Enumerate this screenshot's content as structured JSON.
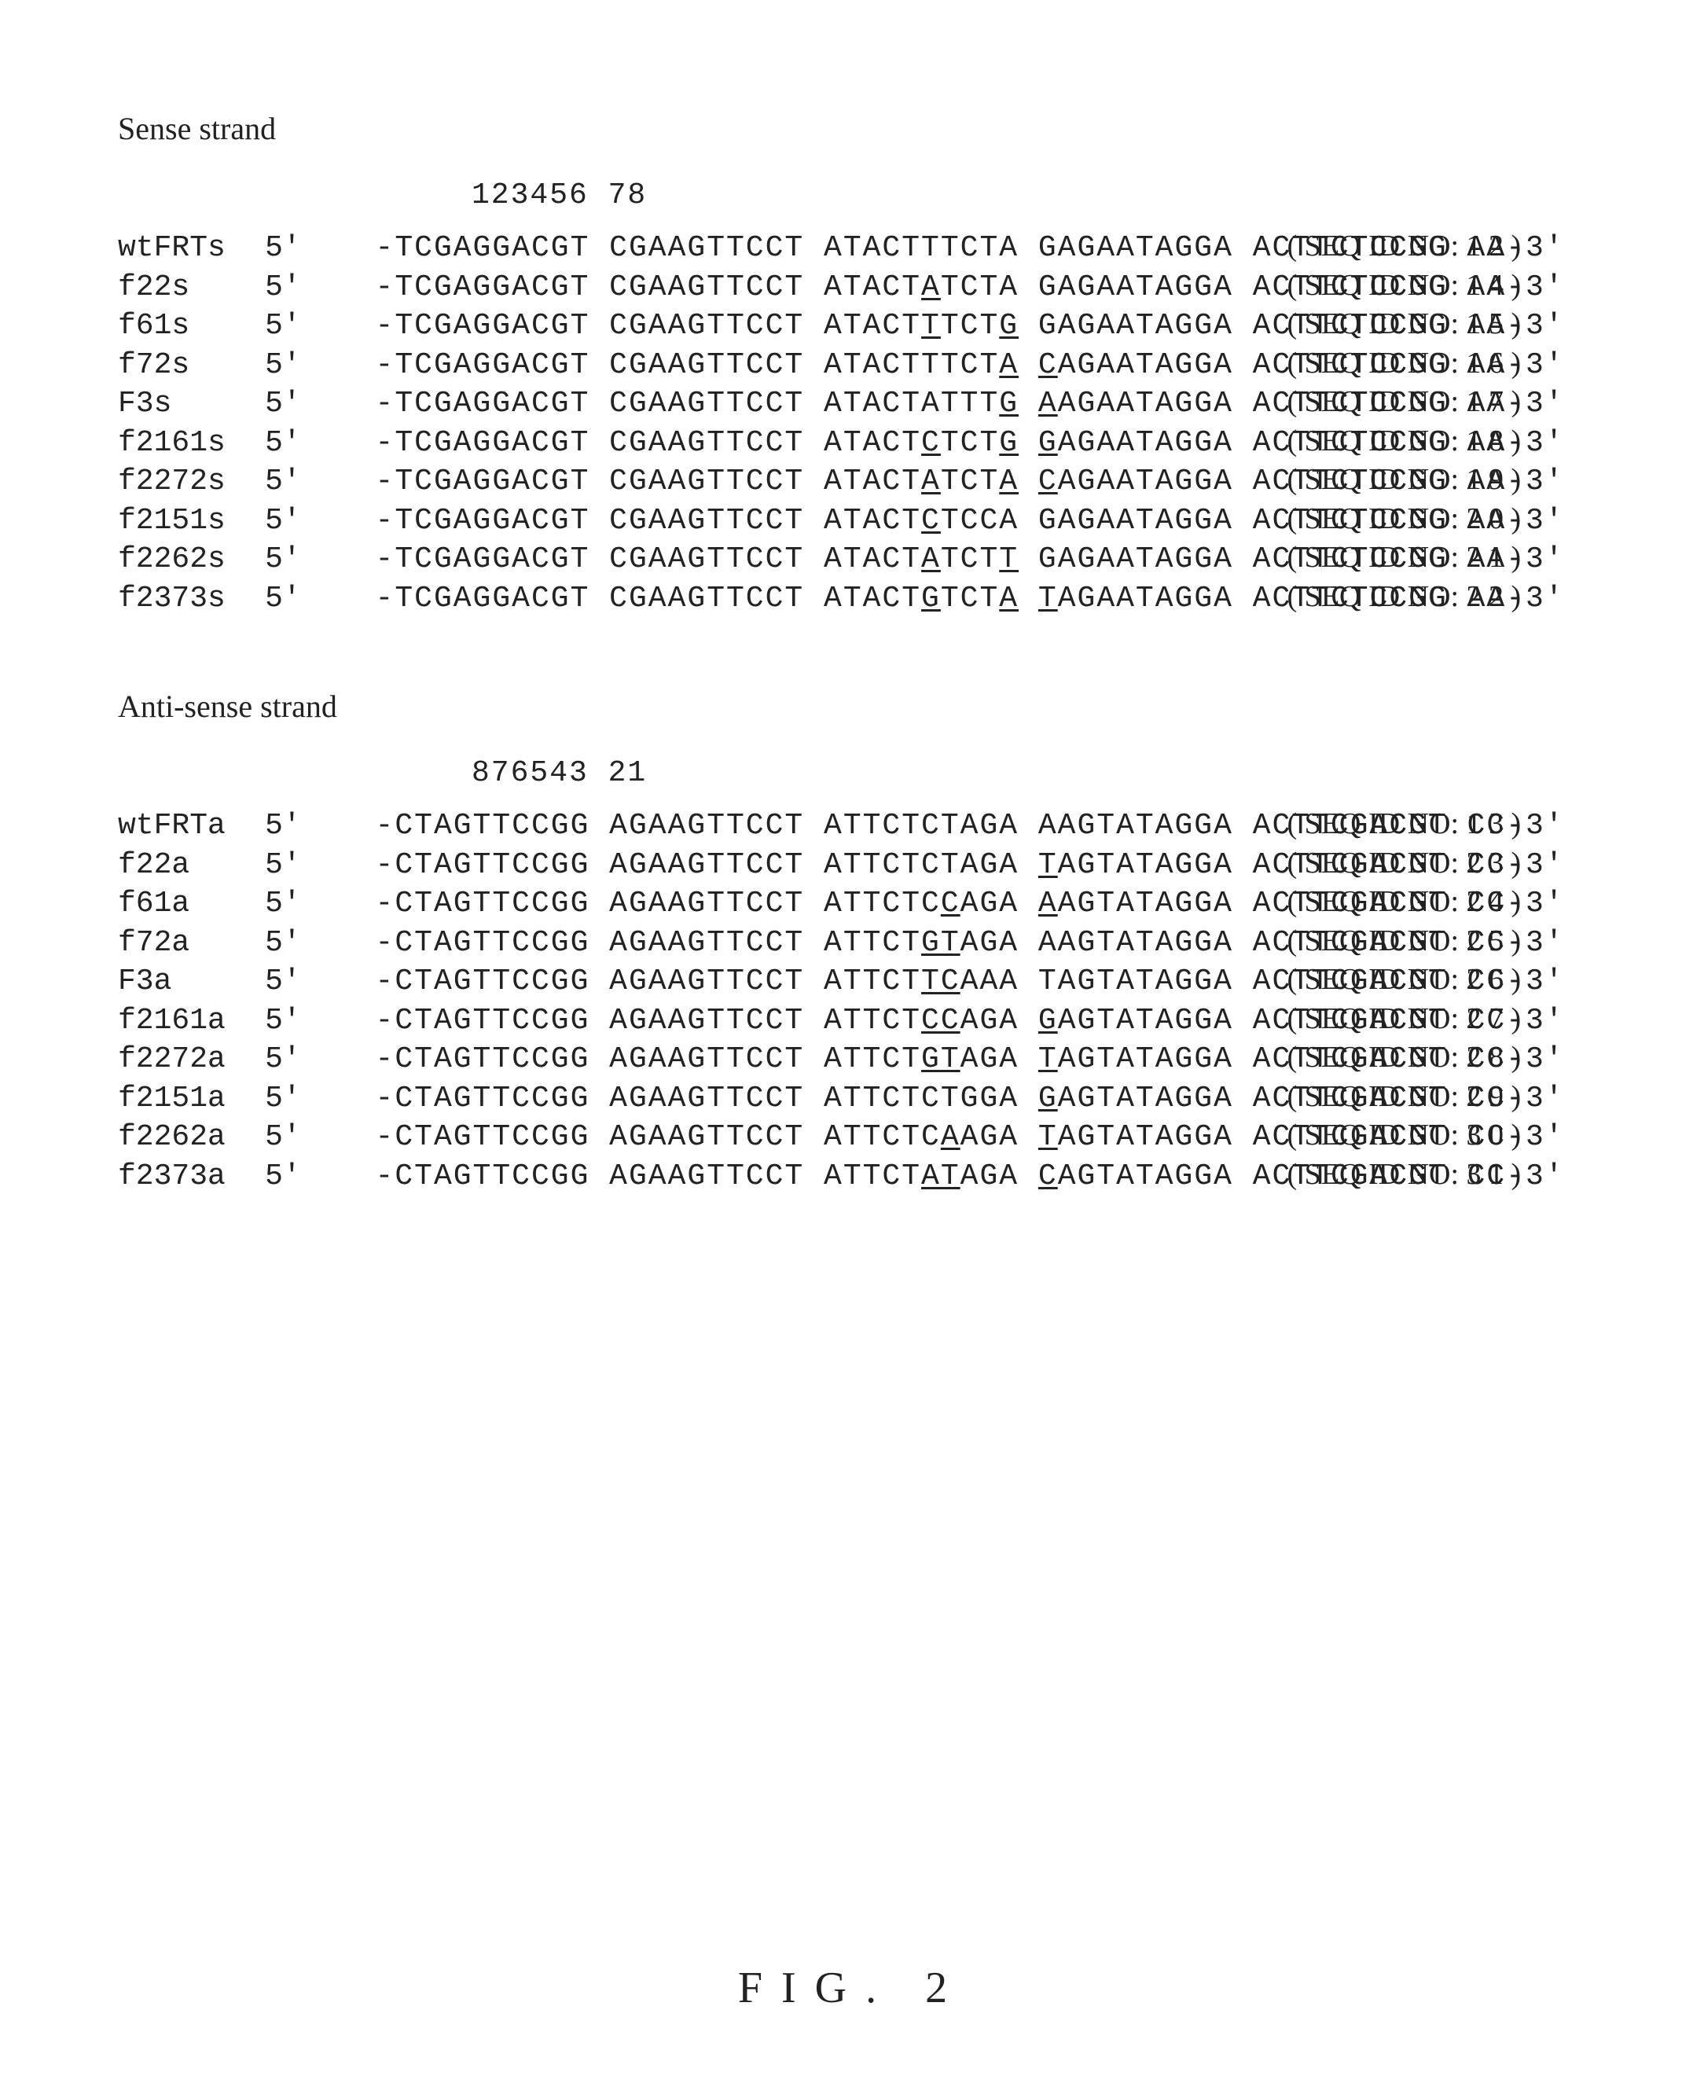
{
  "figure_caption": "FIG. 2",
  "sense": {
    "title": "Sense strand",
    "align_header": "123456 78",
    "rows": [
      {
        "name": "wtFRTs",
        "five_prime": "5'",
        "blocks": [
          "-TCGAGGACGT",
          "CGAAGTTCCT",
          "ATACTTTCTA",
          "GAGAATAGGA",
          "ACTTCTCCGG",
          "AA-3'"
        ],
        "mut": [],
        "seqid": "( SEQ ID NO: 1 2 )"
      },
      {
        "name": "f22s",
        "five_prime": "5'",
        "blocks": [
          "-TCGAGGACGT",
          "CGAAGTTCCT",
          "ATACTATCTA",
          "GAGAATAGGA",
          "ACTTCTCCGG",
          "AA-3'"
        ],
        "mut": [
          [
            2,
            5,
            6
          ]
        ],
        "seqid": "( SEQ ID NO: 1 4 )"
      },
      {
        "name": "f61s",
        "five_prime": "5'",
        "blocks": [
          "-TCGAGGACGT",
          "CGAAGTTCCT",
          "ATACTTTCTG",
          "GAGAATAGGA",
          "ACTTCTCCGG",
          "AA-3'"
        ],
        "mut": [
          [
            2,
            5,
            6
          ],
          [
            2,
            9,
            10
          ]
        ],
        "seqid": "( SEQ ID NO: 1 5 )"
      },
      {
        "name": "f72s",
        "five_prime": "5'",
        "blocks": [
          "-TCGAGGACGT",
          "CGAAGTTCCT",
          "ATACTTTCTA",
          "CAGAATAGGA",
          "ACTTCTCCGG",
          "AA-3'"
        ],
        "mut": [
          [
            2,
            9,
            10
          ],
          [
            3,
            0,
            1
          ]
        ],
        "seqid": "( SEQ ID NO: 1 6 )"
      },
      {
        "name": "F3s",
        "five_prime": "5'",
        "blocks": [
          "-TCGAGGACGT",
          "CGAAGTTCCT",
          "ATACTATTTG",
          "AAGAATAGGA",
          "ACTTCTCCGG",
          "AA-3'"
        ],
        "mut": [
          [
            2,
            9,
            10
          ],
          [
            3,
            0,
            1
          ]
        ],
        "seqid": "( SEQ ID NO: 1 7 )"
      },
      {
        "name": "f2161s",
        "five_prime": "5'",
        "blocks": [
          "-TCGAGGACGT",
          "CGAAGTTCCT",
          "ATACTCTCTG",
          "GAGAATAGGA",
          "ACTTCTCCGG",
          "AA-3'"
        ],
        "mut": [
          [
            2,
            5,
            6
          ],
          [
            2,
            9,
            10
          ],
          [
            3,
            0,
            1
          ]
        ],
        "seqid": "( SEQ ID NO: 1 8 )"
      },
      {
        "name": "f2272s",
        "five_prime": "5'",
        "blocks": [
          "-TCGAGGACGT",
          "CGAAGTTCCT",
          "ATACTATCTA",
          "CAGAATAGGA",
          "ACTTCTCCGG",
          "AA-3'"
        ],
        "mut": [
          [
            2,
            5,
            6
          ],
          [
            2,
            9,
            10
          ],
          [
            3,
            0,
            1
          ]
        ],
        "seqid": "( SEQ ID NO: 1 9 )"
      },
      {
        "name": "f2151s",
        "five_prime": "5'",
        "blocks": [
          "-TCGAGGACGT",
          "CGAAGTTCCT",
          "ATACTCTCCA",
          "GAGAATAGGA",
          "ACTTCTCCGG",
          "AA-3'"
        ],
        "mut": [
          [
            2,
            5,
            6
          ]
        ],
        "seqid": "( SEQ ID NO: 2 0 )"
      },
      {
        "name": "f2262s",
        "five_prime": "5'",
        "blocks": [
          "-TCGAGGACGT",
          "CGAAGTTCCT",
          "ATACTATCTT",
          "GAGAATAGGA",
          "ACTTCTCCGG",
          "AA-3'"
        ],
        "mut": [
          [
            2,
            5,
            6
          ],
          [
            2,
            9,
            10
          ]
        ],
        "seqid": "( SEQ ID NO: 2 1 )"
      },
      {
        "name": "f2373s",
        "five_prime": "5'",
        "blocks": [
          "-TCGAGGACGT",
          "CGAAGTTCCT",
          "ATACTGTCTA",
          "TAGAATAGGA",
          "ACTTCTCCGG",
          "AA-3'"
        ],
        "mut": [
          [
            2,
            5,
            6
          ],
          [
            2,
            9,
            10
          ],
          [
            3,
            0,
            1
          ]
        ],
        "seqid": "( SEQ ID NO: 2 2 )"
      }
    ]
  },
  "antisense": {
    "title": "Anti-sense strand",
    "align_header": "876543 21",
    "rows": [
      {
        "name": "wtFRTa",
        "five_prime": "5'",
        "blocks": [
          "-CTAGTTCCGG",
          "AGAAGTTCCT",
          "ATTCTCTAGA",
          "AAGTATAGGA",
          "ACTTCGACGT",
          "CC-3'"
        ],
        "mut": [],
        "seqid": "( SEQ ID NO: 1 3 )"
      },
      {
        "name": "f22a",
        "five_prime": "5'",
        "blocks": [
          "-CTAGTTCCGG",
          "AGAAGTTCCT",
          "ATTCTCTAGA",
          "TAGTATAGGA",
          "ACTTCGACGT",
          "CC-3'"
        ],
        "mut": [
          [
            3,
            0,
            1
          ]
        ],
        "seqid": "( SEQ ID NO: 2 3 )"
      },
      {
        "name": "f61a",
        "five_prime": "5'",
        "blocks": [
          "-CTAGTTCCGG",
          "AGAAGTTCCT",
          "ATTCTCCAGA",
          "AAGTATAGGA",
          "ACTTCGACGT",
          "CC-3'"
        ],
        "mut": [
          [
            2,
            6,
            7
          ],
          [
            3,
            0,
            1
          ]
        ],
        "seqid": "( SEQ ID NO: 2 4 )"
      },
      {
        "name": "f72a",
        "five_prime": "5'",
        "blocks": [
          "-CTAGTTCCGG",
          "AGAAGTTCCT",
          "ATTCTGTAGA",
          "AAGTATAGGA",
          "ACTTCGACGT",
          "CC-3'"
        ],
        "mut": [
          [
            2,
            5,
            6
          ],
          [
            2,
            6,
            7
          ]
        ],
        "seqid": "( SEQ ID NO: 2 5 )"
      },
      {
        "name": "F3a",
        "five_prime": "5'",
        "blocks": [
          "-CTAGTTCCGG",
          "AGAAGTTCCT",
          "ATTCTTCAAA",
          "TAGTATAGGA",
          "ACTTCGACGT",
          "CC-3'"
        ],
        "mut": [
          [
            2,
            5,
            6
          ],
          [
            2,
            6,
            7
          ]
        ],
        "seqid": "( SEQ ID NO: 2 6 )"
      },
      {
        "name": "f2161a",
        "five_prime": "5'",
        "blocks": [
          "-CTAGTTCCGG",
          "AGAAGTTCCT",
          "ATTCTCCAGA",
          "GAGTATAGGA",
          "ACTTCGACGT",
          "CC-3'"
        ],
        "mut": [
          [
            2,
            5,
            6
          ],
          [
            2,
            6,
            7
          ],
          [
            3,
            0,
            1
          ]
        ],
        "seqid": "( SEQ ID NO: 2 7 )"
      },
      {
        "name": "f2272a",
        "five_prime": "5'",
        "blocks": [
          "-CTAGTTCCGG",
          "AGAAGTTCCT",
          "ATTCTGTAGA",
          "TAGTATAGGA",
          "ACTTCGACGT",
          "CC-3'"
        ],
        "mut": [
          [
            2,
            5,
            6
          ],
          [
            2,
            6,
            7
          ],
          [
            3,
            0,
            1
          ]
        ],
        "seqid": "( SEQ ID NO: 2 8 )"
      },
      {
        "name": "f2151a",
        "five_prime": "5'",
        "blocks": [
          "-CTAGTTCCGG",
          "AGAAGTTCCT",
          "ATTCTCTGGA",
          "GAGTATAGGA",
          "ACTTCGACGT",
          "CC-3'"
        ],
        "mut": [
          [
            3,
            0,
            1
          ]
        ],
        "seqid": "( SEQ ID NO: 2 9 )"
      },
      {
        "name": "f2262a",
        "five_prime": "5'",
        "blocks": [
          "-CTAGTTCCGG",
          "AGAAGTTCCT",
          "ATTCTCAAGA",
          "TAGTATAGGA",
          "ACTTCGACGT",
          "CC-3'"
        ],
        "mut": [
          [
            2,
            6,
            7
          ],
          [
            3,
            0,
            1
          ]
        ],
        "seqid": "( SEQ ID NO: 3 0 )"
      },
      {
        "name": "f2373a",
        "five_prime": "5'",
        "blocks": [
          "-CTAGTTCCGG",
          "AGAAGTTCCT",
          "ATTCTATAGA",
          "CAGTATAGGA",
          "ACTTCGACGT",
          "CC-3'"
        ],
        "mut": [
          [
            2,
            5,
            6
          ],
          [
            2,
            6,
            7
          ],
          [
            3,
            0,
            1
          ]
        ],
        "seqid": "( SEQ ID NO: 3 1 )"
      }
    ]
  }
}
